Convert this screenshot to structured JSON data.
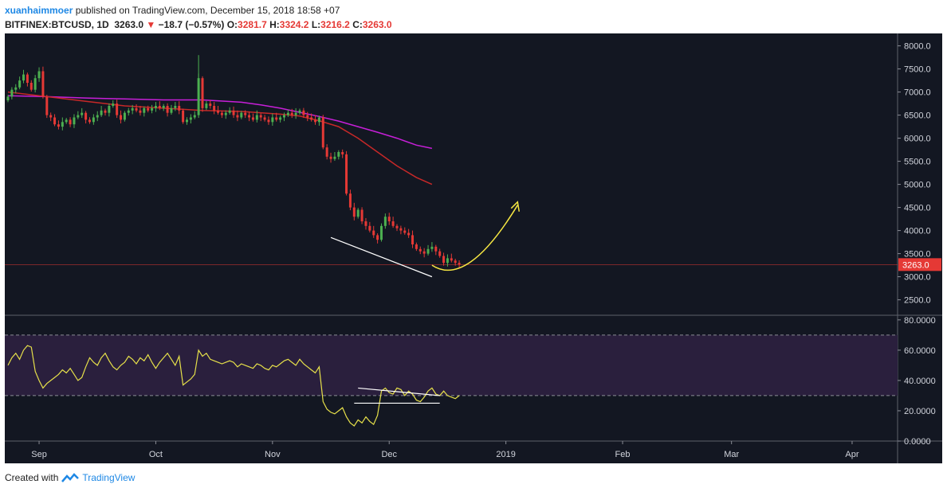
{
  "header": {
    "user": "xuanhaimmoer",
    "published_text": " published on TradingView.com, December 15, 2018 18:58 +07"
  },
  "ticker": {
    "symbol": "BITFINEX:BTCUSD, 1D",
    "last": "3263.0",
    "change_arrow": "▼",
    "change": "−18.7 (−0.57%)",
    "o_label": "O:",
    "o": "3281.7",
    "h_label": "H:",
    "h": "3324.2",
    "l_label": "L:",
    "l": "3216.2",
    "c_label": "C:",
    "c": "3263.0"
  },
  "footer": {
    "created_with": "Created with",
    "brand": "TradingView"
  },
  "colors": {
    "background": "#131722",
    "up": "#26a69a",
    "up_candle": "#4caf50",
    "down": "#e53935",
    "ma_fast": "#c62828",
    "ma_slow": "#c71fd8",
    "rsi": "#e6e04a",
    "drawing_yellow": "#f5e642",
    "drawing_white": "#ffffff",
    "price_tag": "#e53935"
  },
  "chart_data": [
    {
      "type": "candlestick",
      "title": "",
      "ylim": [
        2200,
        8200
      ],
      "y_ticks": [
        "8000.0",
        "7500.0",
        "7000.0",
        "6500.0",
        "6000.0",
        "5500.0",
        "5000.0",
        "4500.0",
        "4000.0",
        "3500.0",
        "3000.0",
        "2500.0"
      ],
      "y_tick_values": [
        8000,
        7500,
        7000,
        6500,
        6000,
        5500,
        5000,
        4500,
        4000,
        3500,
        3000,
        2500
      ],
      "x_ticks": [
        "Sep",
        "Oct",
        "Nov",
        "Dec",
        "2019",
        "Feb",
        "Mar",
        "Apr"
      ],
      "x_tick_days": [
        8,
        38,
        68,
        98,
        128,
        158,
        186,
        217
      ],
      "last_price_label": "3263.0",
      "last_price": 3263,
      "closes": [
        6900,
        7050,
        7100,
        7250,
        7380,
        7200,
        7050,
        7300,
        7450,
        6900,
        6500,
        6450,
        6300,
        6250,
        6350,
        6400,
        6300,
        6450,
        6500,
        6550,
        6400,
        6350,
        6450,
        6500,
        6600,
        6550,
        6700,
        6750,
        6500,
        6400,
        6550,
        6600,
        6650,
        6600,
        6550,
        6650,
        6600,
        6650,
        6700,
        6650,
        6700,
        6550,
        6650,
        6700,
        6600,
        6350,
        6400,
        6450,
        6500,
        7300,
        6650,
        6750,
        6700,
        6600,
        6550,
        6500,
        6550,
        6600,
        6500,
        6450,
        6550,
        6500,
        6450,
        6400,
        6500,
        6450,
        6400,
        6350,
        6450,
        6400,
        6450,
        6500,
        6550,
        6500,
        6550,
        6600,
        6500,
        6450,
        6400,
        6350,
        6450,
        5800,
        5600,
        5550,
        5600,
        5700,
        5650,
        4800,
        4500,
        4300,
        4450,
        4200,
        4100,
        4000,
        3900,
        3800,
        4100,
        4300,
        4200,
        4100,
        4050,
        4000,
        3950,
        3900,
        3700,
        3600,
        3550,
        3500,
        3600,
        3650,
        3550,
        3450,
        3300,
        3400,
        3350,
        3300,
        3263
      ],
      "ma_fast_points": [
        [
          0,
          7000
        ],
        [
          10,
          6900
        ],
        [
          20,
          6800
        ],
        [
          30,
          6700
        ],
        [
          40,
          6650
        ],
        [
          50,
          6600
        ],
        [
          60,
          6580
        ],
        [
          70,
          6520
        ],
        [
          75,
          6480
        ],
        [
          80,
          6380
        ],
        [
          85,
          6250
        ],
        [
          90,
          6000
        ],
        [
          95,
          5700
        ],
        [
          100,
          5400
        ],
        [
          105,
          5150
        ],
        [
          109,
          5000
        ]
      ],
      "ma_slow_points": [
        [
          0,
          6920
        ],
        [
          10,
          6900
        ],
        [
          20,
          6870
        ],
        [
          30,
          6850
        ],
        [
          40,
          6830
        ],
        [
          50,
          6830
        ],
        [
          60,
          6780
        ],
        [
          65,
          6720
        ],
        [
          70,
          6650
        ],
        [
          75,
          6560
        ],
        [
          80,
          6470
        ],
        [
          85,
          6370
        ],
        [
          90,
          6250
        ],
        [
          95,
          6130
        ],
        [
          100,
          6000
        ],
        [
          105,
          5850
        ],
        [
          109,
          5780
        ]
      ]
    },
    {
      "type": "line",
      "title": "",
      "ylim": [
        0,
        82
      ],
      "y_ticks": [
        "80.0000",
        "60.0000",
        "40.0000",
        "20.0000",
        "0.0000"
      ],
      "y_tick_values": [
        80,
        60,
        40,
        20,
        0
      ],
      "band": [
        30,
        70
      ],
      "series": [
        {
          "name": "",
          "values": [
            50,
            55,
            58,
            54,
            60,
            63,
            62,
            46,
            40,
            35,
            38,
            40,
            42,
            44,
            47,
            45,
            48,
            44,
            40,
            42,
            49,
            55,
            52,
            50,
            55,
            58,
            53,
            49,
            47,
            50,
            52,
            56,
            54,
            51,
            55,
            53,
            57,
            52,
            48,
            52,
            55,
            58,
            54,
            50,
            56,
            37,
            39,
            41,
            44,
            60,
            56,
            58,
            54,
            53,
            52,
            51,
            52,
            53,
            52,
            49,
            51,
            50,
            49,
            48,
            51,
            50,
            48,
            47,
            50,
            49,
            51,
            53,
            54,
            52,
            50,
            54,
            51,
            49,
            47,
            45,
            49,
            26,
            21,
            19,
            18,
            20,
            22,
            16,
            12,
            10,
            14,
            12,
            16,
            13,
            11,
            17,
            33,
            35,
            32,
            31,
            35,
            34,
            30,
            33,
            31,
            27,
            26,
            29,
            33,
            35,
            31,
            30,
            33,
            30,
            29,
            28,
            30
          ]
        }
      ]
    }
  ]
}
